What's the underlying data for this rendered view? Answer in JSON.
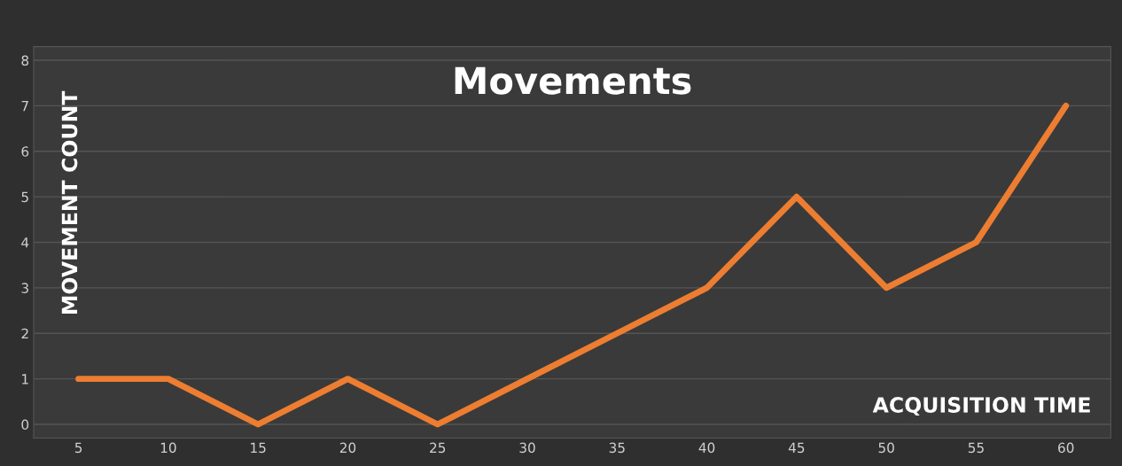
{
  "chart_data": {
    "type": "line",
    "title": "Movements",
    "xlabel": "ACQUISITION TIME",
    "ylabel": "MOVEMENT COUNT",
    "categories": [
      "5",
      "10",
      "15",
      "20",
      "25",
      "30",
      "35",
      "40",
      "45",
      "50",
      "55",
      "60"
    ],
    "series": [
      {
        "color": "#ed7d31",
        "values": [
          1,
          1,
          0,
          1,
          0,
          1,
          2,
          3,
          5,
          3,
          4,
          7
        ]
      }
    ],
    "ylim": [
      -0.3,
      8.3
    ],
    "yticks": [
      0,
      1,
      2,
      3,
      4,
      5,
      6,
      7,
      8
    ],
    "grid": "y",
    "marker": "none",
    "line_style": "solid"
  }
}
